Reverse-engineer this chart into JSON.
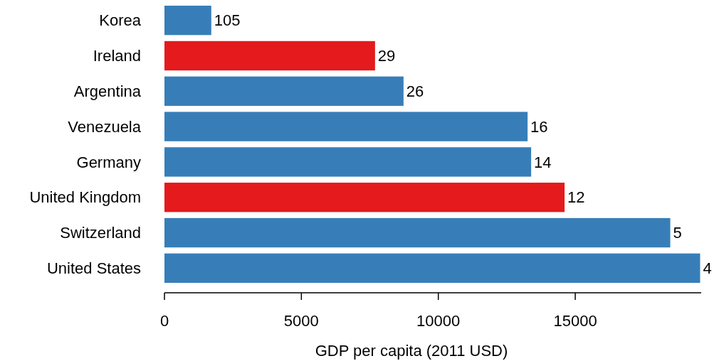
{
  "chart_data": {
    "type": "bar",
    "orientation": "horizontal",
    "xlabel": "GDP per capita (2011 USD)",
    "categories": [
      "Korea",
      "Ireland",
      "Argentina",
      "Venezuela",
      "Germany",
      "United Kingdom",
      "Switzerland",
      "United States"
    ],
    "values": [
      1710,
      7690,
      8730,
      13260,
      13390,
      14610,
      18470,
      19560
    ],
    "colors": [
      "#377eb8",
      "#e41a1c",
      "#377eb8",
      "#377eb8",
      "#377eb8",
      "#e41a1c",
      "#377eb8",
      "#377eb8"
    ],
    "annotations": [
      {
        "text": "105",
        "x": 1710,
        "y": "Korea"
      },
      {
        "text": "29",
        "x": 7690,
        "y": "Ireland"
      },
      {
        "text": "26",
        "x": 8730,
        "y": "Argentina"
      },
      {
        "text": "16",
        "x": 13260,
        "y": "Venezuela"
      },
      {
        "text": "14",
        "x": 13390,
        "y": "Germany"
      },
      {
        "text": "12",
        "x": 14610,
        "y": "United Kingdom"
      },
      {
        "text": "5",
        "x": 18470,
        "y": "Switzerland"
      },
      {
        "text": "4",
        "x": 19560,
        "y": "United States"
      }
    ],
    "xlim": [
      0,
      19600
    ],
    "xticks": [
      0,
      5000,
      10000,
      15000
    ],
    "grid": false
  }
}
